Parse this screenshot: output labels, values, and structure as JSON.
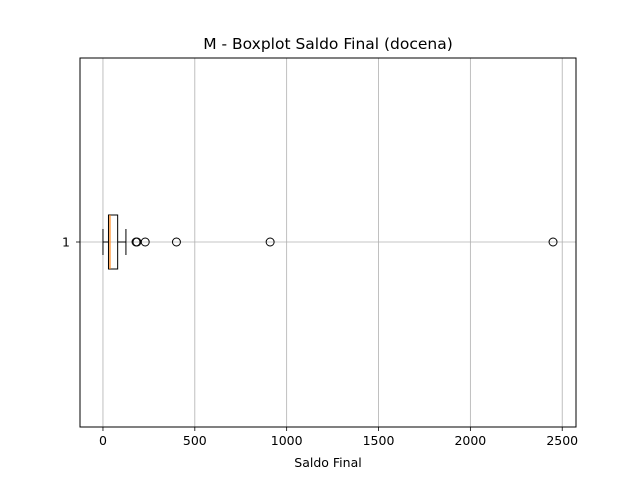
{
  "chart_data": {
    "type": "boxplot",
    "orientation": "horizontal",
    "title": "M - Boxplot Saldo Final (docena)",
    "xlabel": "Saldo Final",
    "ylabel": "",
    "xlim": [
      -125,
      2575
    ],
    "xticks": [
      0,
      500,
      1000,
      1500,
      2000,
      2500
    ],
    "yticks": [
      "1"
    ],
    "grid": true,
    "series": [
      {
        "category": "1",
        "whisker_low": 0,
        "q1": 30,
        "median": 38,
        "q3": 80,
        "whisker_high": 125,
        "outliers": [
          180,
          185,
          230,
          400,
          910,
          2450
        ]
      }
    ],
    "colors": {
      "box": "#000000",
      "median": "#ff7f0e",
      "grid": "#b0b0b0"
    }
  }
}
